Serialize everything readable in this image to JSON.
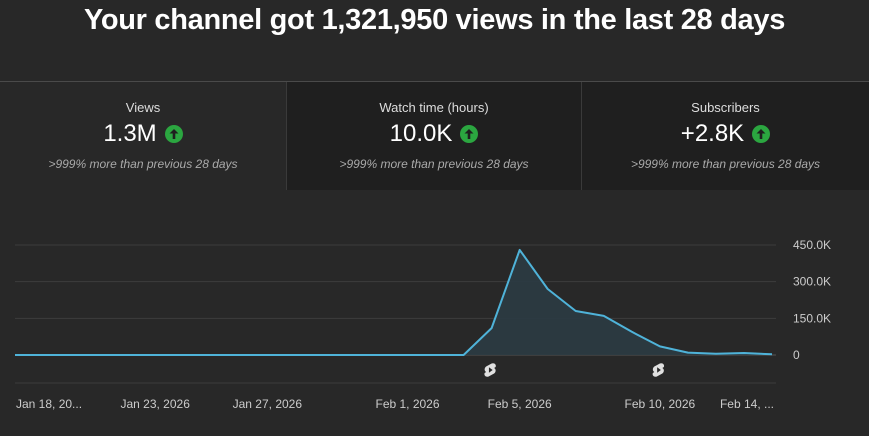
{
  "headline": "Your channel got 1,321,950 views in the last 28 days",
  "tabs": [
    {
      "label": "Views",
      "value": "1.3M",
      "compare": ">999% more than previous 28 days",
      "icon": "arrow-up-icon"
    },
    {
      "label": "Watch time (hours)",
      "value": "10.0K",
      "compare": ">999% more than previous 28 days",
      "icon": "arrow-up-icon"
    },
    {
      "label": "Subscribers",
      "value": "+2.8K",
      "compare": ">999% more than previous 28 days",
      "icon": "arrow-up-icon"
    }
  ],
  "colors": {
    "line": "#4fb3d9",
    "area": "#2b3b42",
    "up_icon": "#2ba640",
    "grid": "#3d3d3d"
  },
  "chart_data": {
    "type": "area",
    "x": [
      "Jan 18",
      "Jan 19",
      "Jan 20",
      "Jan 21",
      "Jan 22",
      "Jan 23",
      "Jan 24",
      "Jan 25",
      "Jan 26",
      "Jan 27",
      "Jan 28",
      "Jan 29",
      "Jan 30",
      "Jan 31",
      "Feb 1",
      "Feb 2",
      "Feb 3",
      "Feb 4",
      "Feb 5",
      "Feb 6",
      "Feb 7",
      "Feb 8",
      "Feb 9",
      "Feb 10",
      "Feb 11",
      "Feb 12",
      "Feb 13",
      "Feb 14"
    ],
    "values": [
      0,
      0,
      0,
      0,
      0,
      0,
      0,
      0,
      0,
      0,
      0,
      0,
      0,
      0,
      0,
      0,
      0,
      110000,
      430000,
      270000,
      180000,
      160000,
      95000,
      35000,
      10000,
      5000,
      8000,
      3000
    ],
    "x_tick_labels": [
      "Jan 18, 20...",
      "Jan 23, 2026",
      "Jan 27, 2026",
      "Feb 1, 2026",
      "Feb 5, 2026",
      "Feb 10, 2026",
      "Feb 14, ..."
    ],
    "x_tick_index": [
      0,
      5,
      9,
      14,
      18,
      23,
      27
    ],
    "y_ticks": [
      0,
      150000,
      300000,
      450000
    ],
    "y_tick_labels": [
      "0",
      "150.0K",
      "300.0K",
      "450.0K"
    ],
    "ylim": [
      0,
      450000
    ],
    "grid": true,
    "markers": [
      {
        "index": 17,
        "icon": "shorts-icon"
      },
      {
        "index": 23,
        "icon": "shorts-icon"
      }
    ]
  }
}
